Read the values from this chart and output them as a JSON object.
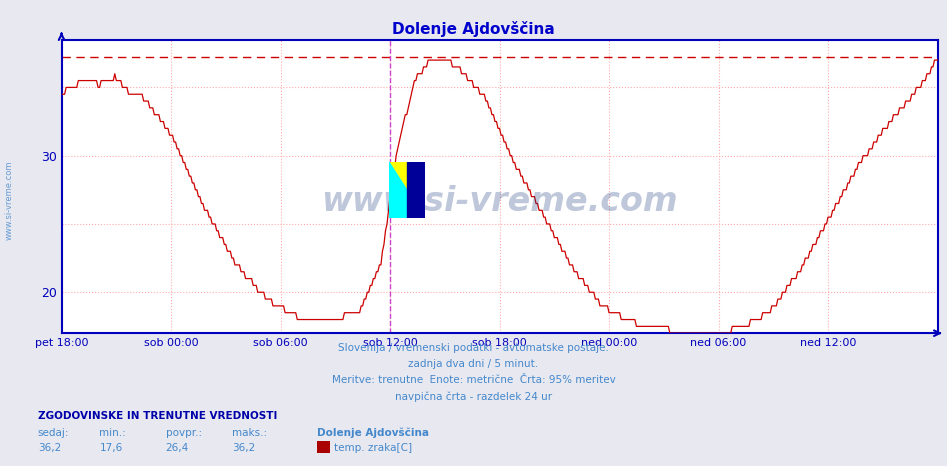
{
  "title": "Dolenje Ajdovščina",
  "title_color": "#0000cc",
  "title_fontsize": 11,
  "ylim": [
    17.0,
    38.5
  ],
  "yticks": [
    20,
    30
  ],
  "ytick_extra": [
    25,
    35
  ],
  "xlim": [
    0,
    576
  ],
  "xtick_positions": [
    0,
    72,
    144,
    216,
    288,
    360,
    432,
    504,
    576
  ],
  "xtick_labels": [
    "pet 18:00",
    "sob 00:00",
    "sob 06:00",
    "sob 12:00",
    "sob 18:00",
    "ned 00:00",
    "ned 06:00",
    "ned 12:00",
    "ned 12:00"
  ],
  "max_line_y": 37.2,
  "vertical_line_x": 216,
  "bg_color": "#e8e8f0",
  "plot_bg_color": "#ffffff",
  "line_color": "#cc0000",
  "grid_color": "#ffaaaa",
  "border_color": "#0000bb",
  "bottom_text1": "Slovenija / vremenski podatki - avtomatske postaje.",
  "bottom_text2": "zadnja dva dni / 5 minut.",
  "bottom_text3": "Meritve: trenutne  Enote: metrične  Črta: 95% meritev",
  "bottom_text4": "navpična črta - razdelek 24 ur",
  "stats_header": "ZGODOVINSKE IN TRENUTNE VREDNOSTI",
  "stats_sedaj": "36,2",
  "stats_min": "17,6",
  "stats_povpr": "26,4",
  "stats_maks": "36,2",
  "stats_location": "Dolenje Ajdovščina",
  "stats_series": "temp. zraka[C]",
  "watermark": "www.si-vreme.com",
  "watermark_color": "#1a3a7a",
  "watermark_alpha": 0.28,
  "sidebar_text": "www.si-vreme.com",
  "sidebar_color": "#4488cc",
  "text_color": "#4488cc",
  "stats_bold_color": "#0000aa"
}
